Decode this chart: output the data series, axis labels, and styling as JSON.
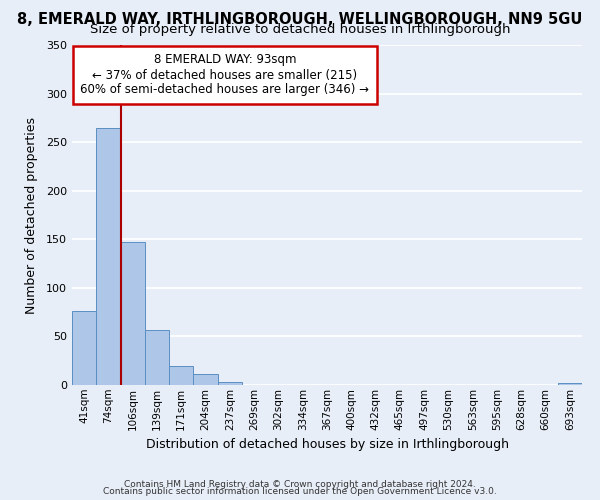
{
  "title": "8, EMERALD WAY, IRTHLINGBOROUGH, WELLINGBOROUGH, NN9 5GU",
  "subtitle": "Size of property relative to detached houses in Irthlingborough",
  "xlabel": "Distribution of detached houses by size in Irthlingborough",
  "ylabel": "Number of detached properties",
  "categories": [
    "41sqm",
    "74sqm",
    "106sqm",
    "139sqm",
    "171sqm",
    "204sqm",
    "237sqm",
    "269sqm",
    "302sqm",
    "334sqm",
    "367sqm",
    "400sqm",
    "432sqm",
    "465sqm",
    "497sqm",
    "530sqm",
    "563sqm",
    "595sqm",
    "628sqm",
    "660sqm",
    "693sqm"
  ],
  "bar_values": [
    76,
    265,
    147,
    57,
    20,
    11,
    3,
    0,
    0,
    0,
    0,
    0,
    0,
    0,
    0,
    0,
    0,
    0,
    0,
    0,
    2
  ],
  "bar_color": "#aec6e8",
  "bar_edge_color": "#5a8fc2",
  "vline_color": "#aa0000",
  "annotation_title": "8 EMERALD WAY: 93sqm",
  "annotation_line1": "← 37% of detached houses are smaller (215)",
  "annotation_line2": "60% of semi-detached houses are larger (346) →",
  "annotation_box_color": "#ffffff",
  "annotation_box_edge_color": "#cc0000",
  "ylim": [
    0,
    350
  ],
  "yticks": [
    0,
    50,
    100,
    150,
    200,
    250,
    300,
    350
  ],
  "footer1": "Contains HM Land Registry data © Crown copyright and database right 2024.",
  "footer2": "Contains public sector information licensed under the Open Government Licence v3.0.",
  "bg_color": "#e8eef8",
  "grid_color": "#ffffff",
  "title_fontsize": 10.5,
  "subtitle_fontsize": 9.5
}
